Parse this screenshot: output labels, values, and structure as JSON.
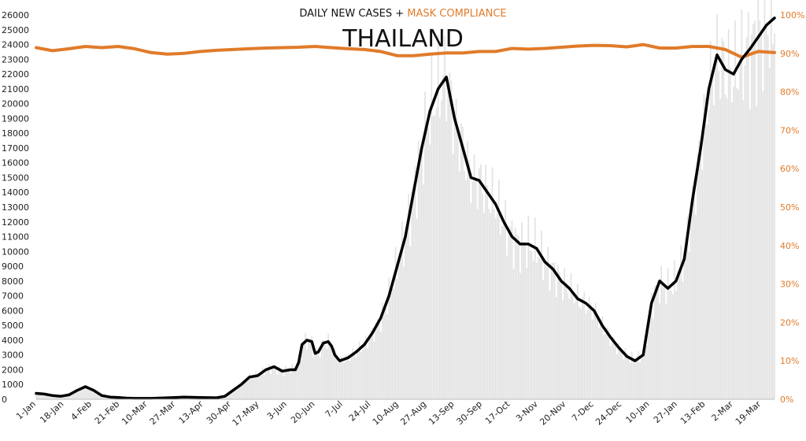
{
  "chart_data": {
    "type": "line",
    "title": "THAILAND",
    "subtitle_parts": [
      "DAILY NEW CASES + ",
      "MASK COMPLIANCE"
    ],
    "xlabel": "",
    "ylabel": "",
    "grid": false,
    "x_ticks": [
      "1-Jan",
      "18-Jan",
      "4-Feb",
      "21-Feb",
      "10-Mar",
      "27-Mar",
      "13-Apr",
      "30-Apr",
      "17-May",
      "3-Jun",
      "20-Jun",
      "7-Jul",
      "24-Jul",
      "10-Aug",
      "27-Aug",
      "13-Sep",
      "30-Sep",
      "17-Oct",
      "3-Nov",
      "20-Nov",
      "7-Dec",
      "24-Dec",
      "10-Jan",
      "27-Jan",
      "13-Feb",
      "2-Mar",
      "19-Mar"
    ],
    "y_left": {
      "range": [
        0,
        26000
      ],
      "ticks": [
        "0",
        "1000",
        "2000",
        "3000",
        "4000",
        "5000",
        "6000",
        "7000",
        "8000",
        "9000",
        "10000",
        "11000",
        "12000",
        "13000",
        "14000",
        "15000",
        "16000",
        "17000",
        "18000",
        "19000",
        "20000",
        "21000",
        "22000",
        "23000",
        "24000",
        "25000",
        "26000"
      ]
    },
    "y_right": {
      "range": [
        0,
        100
      ],
      "ticks": [
        "0%",
        "10%",
        "20%",
        "30%",
        "40%",
        "50%",
        "60%",
        "70%",
        "80%",
        "90%",
        "100%"
      ]
    },
    "x_range_days": [
      0,
      450
    ],
    "series": [
      {
        "name": "DAILY NEW CASES",
        "axis": "left",
        "style": "line",
        "color": "#000000",
        "x_days": [
          0,
          5,
          10,
          15,
          20,
          25,
          30,
          35,
          40,
          45,
          50,
          55,
          60,
          70,
          80,
          85,
          90,
          100,
          110,
          115,
          120,
          125,
          130,
          135,
          140,
          145,
          150,
          155,
          158,
          160,
          162,
          165,
          168,
          170,
          172,
          175,
          178,
          180,
          182,
          185,
          190,
          195,
          200,
          205,
          210,
          215,
          220,
          225,
          230,
          235,
          240,
          245,
          250,
          255,
          260,
          265,
          270,
          275,
          280,
          285,
          290,
          295,
          300,
          305,
          310,
          315,
          320,
          325,
          330,
          335,
          340,
          345,
          350,
          355,
          360,
          365,
          370,
          375,
          380,
          385,
          390,
          395,
          400,
          405,
          410,
          415,
          420,
          425,
          430,
          435,
          440,
          445,
          450
        ],
        "values": [
          400,
          350,
          250,
          200,
          300,
          600,
          850,
          600,
          250,
          150,
          120,
          80,
          60,
          60,
          100,
          120,
          150,
          120,
          100,
          200,
          600,
          1000,
          1500,
          1600,
          2000,
          2200,
          1900,
          2000,
          2000,
          2500,
          3700,
          4000,
          3900,
          3100,
          3200,
          3800,
          3900,
          3600,
          3000,
          2600,
          2800,
          3200,
          3700,
          4500,
          5500,
          7000,
          9000,
          11000,
          14000,
          17000,
          19500,
          21000,
          21800,
          19000,
          17000,
          15000,
          14800,
          14000,
          13200,
          12000,
          11000,
          10500,
          10500,
          10200,
          9300,
          8800,
          8000,
          7500,
          6800,
          6500,
          6000,
          5000,
          4200,
          3500,
          2900,
          2600,
          3000,
          6500,
          8000,
          7500,
          8000,
          9500,
          13500,
          17000,
          21000,
          23300,
          22300,
          22000,
          23000,
          23700,
          24500,
          25300,
          25800
        ]
      },
      {
        "name": "MASK COMPLIANCE",
        "axis": "right",
        "style": "line",
        "color": "#e07b2a",
        "x_days": [
          0,
          10,
          20,
          30,
          40,
          50,
          60,
          70,
          80,
          90,
          100,
          110,
          120,
          130,
          140,
          150,
          160,
          170,
          180,
          190,
          200,
          210,
          220,
          230,
          240,
          250,
          260,
          270,
          280,
          290,
          300,
          310,
          320,
          330,
          340,
          350,
          360,
          370,
          380,
          390,
          400,
          410,
          420,
          430,
          440,
          450
        ],
        "values": [
          91.5,
          90.7,
          91.2,
          91.8,
          91.5,
          91.8,
          91.2,
          90.2,
          89.8,
          90.0,
          90.5,
          90.8,
          91.0,
          91.2,
          91.4,
          91.5,
          91.6,
          91.8,
          91.5,
          91.2,
          91.0,
          90.5,
          89.4,
          89.4,
          89.8,
          90.1,
          90.1,
          90.5,
          90.5,
          91.3,
          91.1,
          91.3,
          91.6,
          91.9,
          92.1,
          92.0,
          91.7,
          92.3,
          91.4,
          91.4,
          91.8,
          91.8,
          91.0,
          89.0,
          90.5,
          90.2
        ]
      },
      {
        "name": "DAILY NEW CASES (daily bars)",
        "axis": "left",
        "style": "bars",
        "color": "#e2e2e2",
        "from_series": 0
      }
    ]
  }
}
